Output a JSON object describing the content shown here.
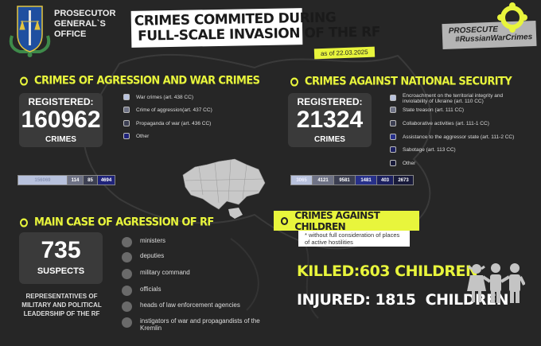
{
  "header": {
    "org_name": [
      "PROSECUTOR",
      "GENERAL`S",
      "OFFICE"
    ],
    "title_lines": [
      "CRIMES COMMITED DURING",
      "FULL-SCALE INVASION OF THE RF"
    ],
    "date": "as of 22.03.2025",
    "badge": [
      "PROSECUTE",
      "#RussianWarCrimes"
    ]
  },
  "colors": {
    "accent": "#e8f53c",
    "background": "#262626",
    "card": "#3a3a3a"
  },
  "war_crimes": {
    "heading": "CRIMES OF AGRESSION AND WAR CRIMES",
    "registered_label": "REGISTERED:",
    "total": "160962",
    "unit": "CRIMES",
    "legend": [
      {
        "label": "War crimes (art. 438 CC)",
        "color": "#b8c2dd"
      },
      {
        "label": "Crime of aggression(art. 437 CC)",
        "color": "#6e7285"
      },
      {
        "label": "Propaganda of war (art. 436 CC)",
        "color": "#3c3f52"
      },
      {
        "label": "Other",
        "color": "#1f237a"
      }
    ],
    "bar": [
      "156069",
      "114",
      "85",
      "4694"
    ]
  },
  "national_security": {
    "heading": "CRIMES AGAINST NATIONAL SECURITY",
    "registered_label": "REGISTERED:",
    "total": "21324",
    "unit": "CRIMES",
    "legend": [
      {
        "label": "Encroachment on the territorial integrity and inviolability of Ukraine (art. 110 CC)",
        "color": "#b8c2dd"
      },
      {
        "label": "State treason (art. 111 CC)",
        "color": "#6e7285"
      },
      {
        "label": "Collaborative activities (art. 111-1 CC)",
        "color": "#3c3f52"
      },
      {
        "label": "Assistance to the aggressor state (art. 111-2 CC)",
        "color": "#27308a"
      },
      {
        "label": "Sabotage (art. 113 CC)",
        "color": "#1c2060"
      },
      {
        "label": "Other",
        "color": "#181a3a"
      }
    ],
    "bar": [
      "3065",
      "4121",
      "9581",
      "1481",
      "403",
      "2673"
    ]
  },
  "main_case": {
    "heading": "MAIN CASE OF AGRESSION OF RF",
    "total": "735",
    "unit": "SUSPECTS",
    "description": "REPRESENTATIVES OF MILITARY AND POLITICAL LEADERSHIP OF THE RF",
    "items": [
      "ministers",
      "deputies",
      "military command",
      "officials",
      "heads of law enforcement agencies",
      "instigators of war and propagandists of the Kremlin"
    ]
  },
  "children": {
    "heading": "CRIMES AGAINST CHILDREN",
    "note": "* without full consideration of places of active hostilities",
    "killed": "KILLED:603 CHILDREN",
    "injured": "INJURED: 1815  CHILDREN"
  }
}
